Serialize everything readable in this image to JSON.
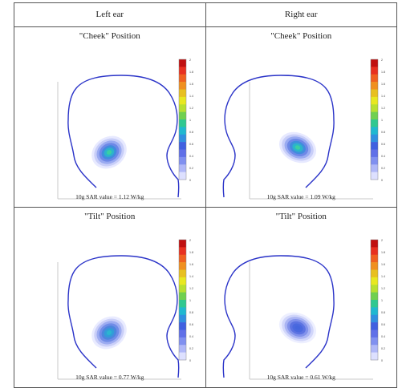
{
  "header": {
    "left": "Left ear",
    "right": "Right ear"
  },
  "colorbar": {
    "colors": [
      "#c01010",
      "#e83020",
      "#f06020",
      "#f09020",
      "#e8c020",
      "#e8e820",
      "#b8e030",
      "#70d050",
      "#30c890",
      "#20b8d0",
      "#3090e0",
      "#4060e0",
      "#6070e8",
      "#8090f0",
      "#b0b8f8",
      "#dde0ff"
    ],
    "labels": [
      "2",
      "1.8",
      "1.6",
      "1.4",
      "1.2",
      "1",
      "0.8",
      "0.6",
      "0.4",
      "0.2",
      "0"
    ]
  },
  "panels": [
    {
      "title": "\"Cheek\" Position",
      "sar": "10g SAR  value = 1.12 W/kg",
      "side": "left",
      "intensity": "high"
    },
    {
      "title": "\"Cheek\" Position",
      "sar": "10g SAR  value = 1.09 W/kg",
      "side": "right",
      "intensity": "high"
    },
    {
      "title": "\"Tilt\" Position",
      "sar": "10g SAR  value = 0.77 W/kg",
      "side": "left",
      "intensity": "mid"
    },
    {
      "title": "\"Tilt\" Position",
      "sar": "10g SAR  value = 0.61 W/kg",
      "side": "right",
      "intensity": "low"
    }
  ]
}
